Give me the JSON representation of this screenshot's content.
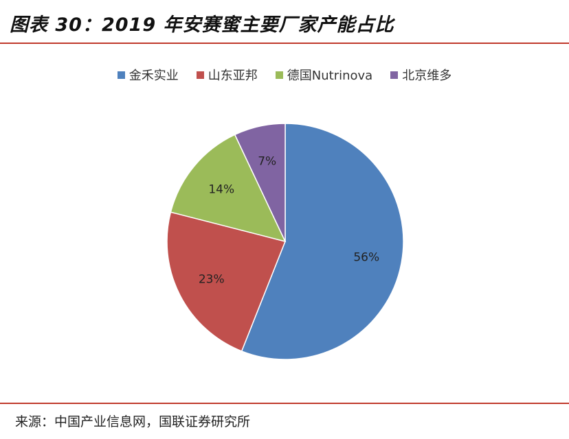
{
  "title": "图表 30：2019 年安赛蜜主要厂家产能占比",
  "source": "来源：中国产业信息网，国联证券研究所",
  "chart_data": {
    "type": "pie",
    "title": "2019 年安赛蜜主要厂家产能占比",
    "categories": [
      "金禾实业",
      "山东亚邦",
      "德国Nutrinova",
      "北京维多"
    ],
    "values": [
      56,
      23,
      14,
      7
    ],
    "labels": [
      "56%",
      "23%",
      "14%",
      "7%"
    ],
    "colors": [
      "#4F81BD",
      "#C0504D",
      "#9BBB59",
      "#8064A2"
    ],
    "legend": "top",
    "start": "top-clockwise"
  }
}
